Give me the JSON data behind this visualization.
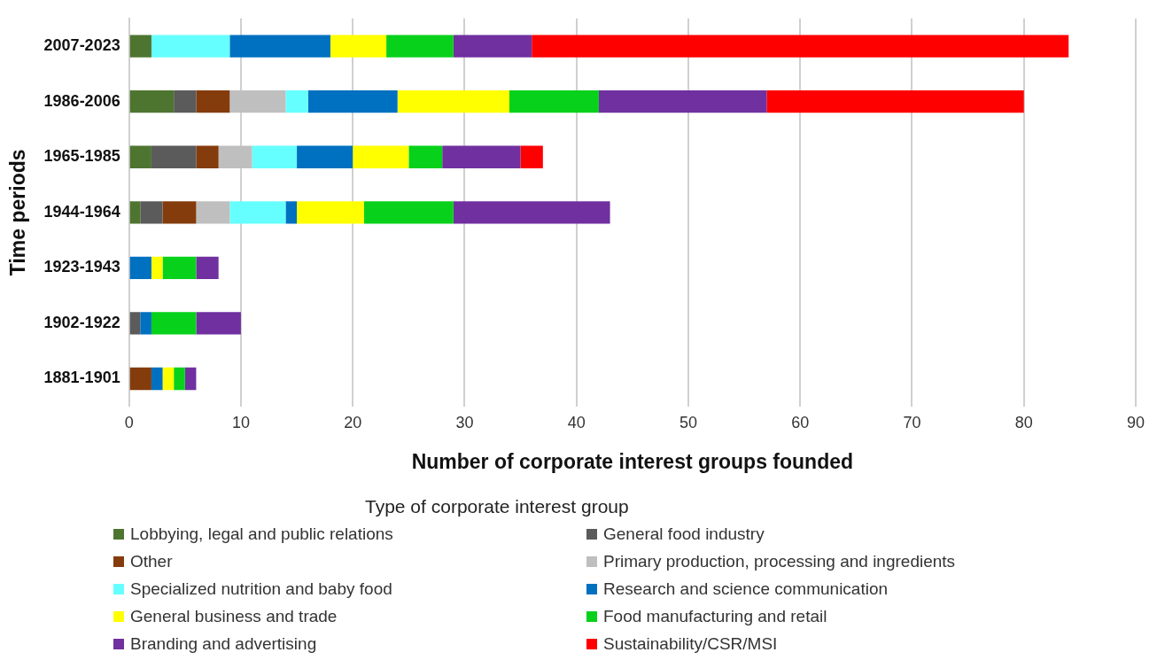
{
  "chart_data": {
    "type": "bar",
    "orientation": "horizontal",
    "stacked": true,
    "xlabel": "Number of corporate interest groups founded",
    "ylabel": "Time periods",
    "legend_title": "Type of corporate interest group",
    "categories": [
      "2007-2023",
      "1986-2006",
      "1965-1985",
      "1944-1964",
      "1923-1943",
      "1902-1922",
      "1881-1901"
    ],
    "xlim": [
      0,
      90
    ],
    "xticks": [
      0,
      10,
      20,
      30,
      40,
      50,
      60,
      70,
      80,
      90
    ],
    "grid": "x",
    "legend": "bottom",
    "series": [
      {
        "name": "Lobbying, legal and public relations",
        "color": "#4e7530",
        "values": [
          2,
          4,
          2,
          1,
          0,
          0,
          0
        ]
      },
      {
        "name": "General food industry",
        "color": "#5b5b5b",
        "values": [
          0,
          2,
          4,
          2,
          0,
          1,
          0
        ]
      },
      {
        "name": "Other",
        "color": "#843c0c",
        "values": [
          0,
          3,
          2,
          3,
          0,
          0,
          2
        ]
      },
      {
        "name": "Primary production, processing and ingredients",
        "color": "#bfbfbf",
        "values": [
          0,
          5,
          3,
          3,
          0,
          0,
          0
        ]
      },
      {
        "name": "Specialized nutrition and baby food",
        "color": "#66ffff",
        "values": [
          7,
          2,
          4,
          5,
          0,
          0,
          0
        ]
      },
      {
        "name": "Research and science communication",
        "color": "#0070c0",
        "values": [
          9,
          8,
          5,
          1,
          2,
          1,
          1
        ]
      },
      {
        "name": "General business and trade",
        "color": "#ffff00",
        "values": [
          5,
          10,
          5,
          6,
          1,
          0,
          1
        ]
      },
      {
        "name": "Food manufacturing and retail",
        "color": "#07d11b",
        "values": [
          6,
          8,
          3,
          8,
          3,
          4,
          1
        ]
      },
      {
        "name": "Branding and advertising",
        "color": "#7030a0",
        "values": [
          7,
          15,
          7,
          14,
          2,
          4,
          1
        ]
      },
      {
        "name": "Sustainability/CSR/MSI",
        "color": "#ff0000",
        "values": [
          48,
          23,
          2,
          0,
          0,
          0,
          0
        ]
      }
    ]
  }
}
